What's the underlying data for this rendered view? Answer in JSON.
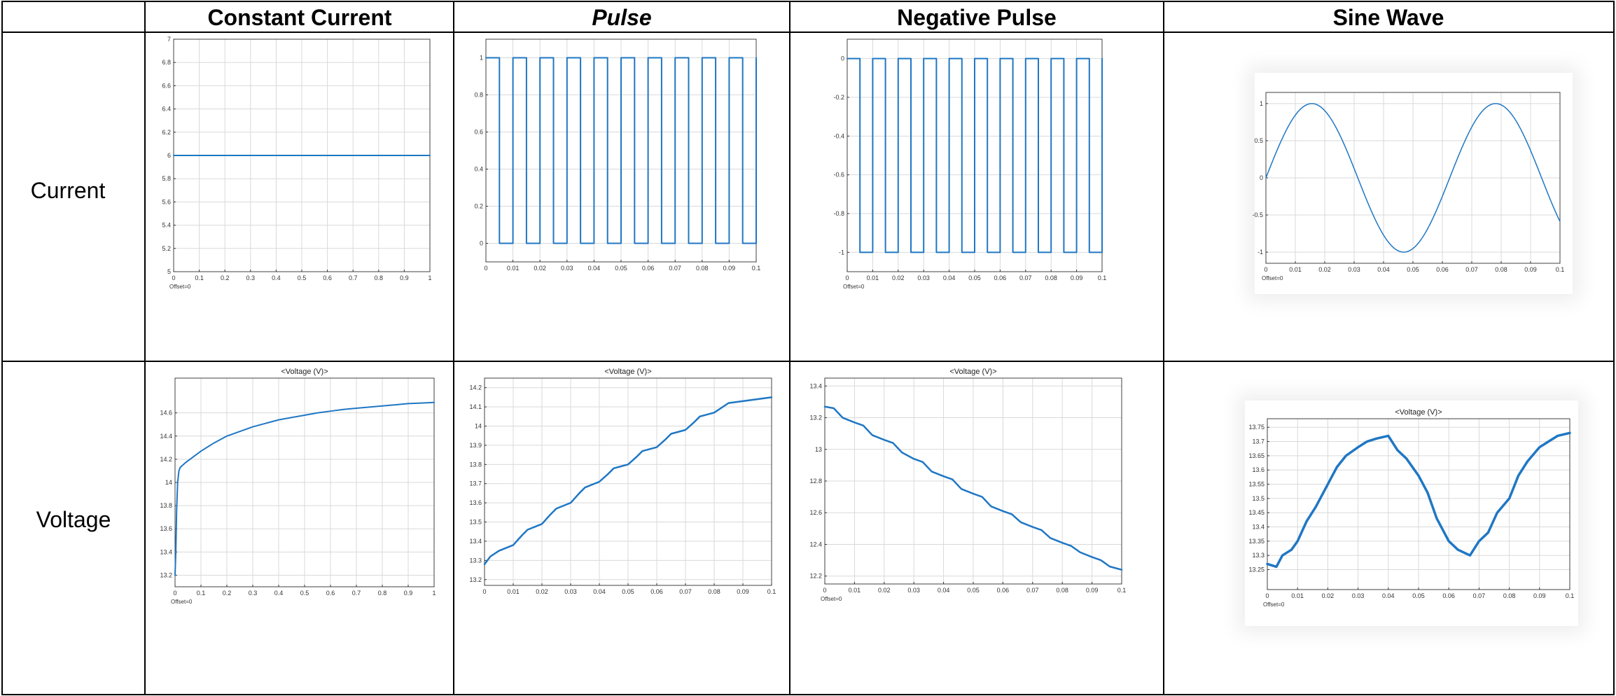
{
  "table": {
    "header": [
      "",
      "Constant Current",
      "Pulse",
      "Negative Pulse",
      "Sine Wave"
    ],
    "rows": [
      "Current",
      "Voltage"
    ]
  },
  "colors": {
    "trace": "#1f77c4",
    "grid": "#d9d9d9",
    "border": "#000000",
    "axis": "#404040"
  },
  "chart_data": [
    {
      "id": "cc-current",
      "type": "line",
      "title": "",
      "xlim": [
        0,
        1
      ],
      "ylim": [
        5,
        7
      ],
      "xticks": [
        "0",
        "0.1",
        "0.2",
        "0.3",
        "0.4",
        "0.5",
        "0.6",
        "0.7",
        "0.8",
        "0.9",
        "1"
      ],
      "yticks": [
        "5",
        "5.2",
        "5.4",
        "5.6",
        "5.8",
        "6",
        "6.2",
        "6.4",
        "6.6",
        "6.8",
        "7"
      ],
      "offset_label": "Offset=0",
      "waveform": "constant",
      "series": [
        {
          "x": [
            0,
            1
          ],
          "y": [
            6,
            6
          ]
        }
      ]
    },
    {
      "id": "pulse-current",
      "type": "line",
      "title": "",
      "xlim": [
        0,
        0.1
      ],
      "ylim": [
        -0.1,
        1.1
      ],
      "xticks": [
        "0",
        "0.01",
        "0.02",
        "0.03",
        "0.04",
        "0.05",
        "0.06",
        "0.07",
        "0.08",
        "0.09",
        "0.1"
      ],
      "yticks": [
        "0",
        "0.2",
        "0.4",
        "0.6",
        "0.8",
        "1"
      ],
      "ytick_values": [
        0,
        0.2,
        0.4,
        0.6,
        0.8,
        1
      ],
      "offset_label": "",
      "waveform": "square",
      "square": {
        "period": 0.01,
        "duty": 0.5,
        "high": 1,
        "low": 0,
        "phase": 0
      }
    },
    {
      "id": "negpulse-current",
      "type": "line",
      "title": "",
      "xlim": [
        0,
        0.1
      ],
      "ylim": [
        -1.1,
        0.1
      ],
      "xticks": [
        "0",
        "0.01",
        "0.02",
        "0.03",
        "0.04",
        "0.05",
        "0.06",
        "0.07",
        "0.08",
        "0.09",
        "0.1"
      ],
      "yticks": [
        "-1",
        "-0.8",
        "-0.6",
        "-0.4",
        "-0.2",
        "0"
      ],
      "ytick_values": [
        -1,
        -0.8,
        -0.6,
        -0.4,
        -0.2,
        0
      ],
      "offset_label": "Offset=0",
      "waveform": "square",
      "square": {
        "period": 0.01,
        "duty": 0.5,
        "high": 0,
        "low": -1,
        "phase": 0
      }
    },
    {
      "id": "sine-current",
      "type": "line",
      "title": "",
      "xlim": [
        0,
        0.1
      ],
      "ylim": [
        -1.15,
        1.15
      ],
      "xticks": [
        "0",
        "0.01",
        "0.02",
        "0.03",
        "0.04",
        "0.05",
        "0.06",
        "0.07",
        "0.08",
        "0.09",
        "0.1"
      ],
      "yticks": [
        "-1",
        "-0.5",
        "0",
        "0.5",
        "1"
      ],
      "ytick_values": [
        -1,
        -0.5,
        0,
        0.5,
        1
      ],
      "offset_label": "Offset=0",
      "waveform": "sine",
      "sine": {
        "freq": 16,
        "amp": 1
      }
    },
    {
      "id": "cc-voltage",
      "type": "line",
      "title": "<Voltage (V)>",
      "xlim": [
        0,
        1
      ],
      "ylim": [
        13.1,
        14.9
      ],
      "xticks": [
        "0",
        "0.1",
        "0.2",
        "0.3",
        "0.4",
        "0.5",
        "0.6",
        "0.7",
        "0.8",
        "0.9",
        "1"
      ],
      "yticks": [
        "13.2",
        "13.4",
        "13.6",
        "13.8",
        "14",
        "14.2",
        "14.4",
        "14.6"
      ],
      "ytick_values": [
        13.2,
        13.4,
        13.6,
        13.8,
        14,
        14.2,
        14.4,
        14.6
      ],
      "offset_label": "Offset=0",
      "series": [
        {
          "x": [
            0,
            0.003,
            0.006,
            0.01,
            0.015,
            0.02,
            0.04,
            0.07,
            0.1,
            0.15,
            0.2,
            0.25,
            0.3,
            0.35,
            0.4,
            0.45,
            0.5,
            0.55,
            0.6,
            0.65,
            0.7,
            0.75,
            0.8,
            0.85,
            0.9,
            0.95,
            1.0
          ],
          "y": [
            13.2,
            13.4,
            13.75,
            14.0,
            14.1,
            14.13,
            14.17,
            14.22,
            14.27,
            14.34,
            14.4,
            14.44,
            14.48,
            14.51,
            14.54,
            14.56,
            14.58,
            14.6,
            14.615,
            14.63,
            14.64,
            14.65,
            14.66,
            14.67,
            14.68,
            14.685,
            14.69
          ]
        }
      ]
    },
    {
      "id": "pulse-voltage",
      "type": "line",
      "title": "<Voltage (V)>",
      "xlim": [
        0,
        0.1
      ],
      "ylim": [
        13.17,
        14.25
      ],
      "xticks": [
        "0",
        "0.01",
        "0.02",
        "0.03",
        "0.04",
        "0.05",
        "0.06",
        "0.07",
        "0.08",
        "0.09",
        "0.1"
      ],
      "yticks": [
        "13.2",
        "13.3",
        "13.4",
        "13.5",
        "13.6",
        "13.7",
        "13.8",
        "13.9",
        "14",
        "14.1",
        "14.2"
      ],
      "ytick_values": [
        13.2,
        13.3,
        13.4,
        13.5,
        13.6,
        13.7,
        13.8,
        13.9,
        14,
        14.1,
        14.2
      ],
      "offset_label": "",
      "series": [
        {
          "x": [
            0,
            0.002,
            0.005,
            0.01,
            0.013,
            0.015,
            0.02,
            0.023,
            0.025,
            0.03,
            0.033,
            0.035,
            0.04,
            0.043,
            0.045,
            0.05,
            0.053,
            0.055,
            0.06,
            0.063,
            0.065,
            0.07,
            0.073,
            0.075,
            0.08,
            0.083,
            0.085,
            0.09,
            0.095,
            0.1
          ],
          "y": [
            13.28,
            13.32,
            13.35,
            13.38,
            13.43,
            13.46,
            13.49,
            13.54,
            13.57,
            13.6,
            13.65,
            13.68,
            13.71,
            13.75,
            13.78,
            13.8,
            13.84,
            13.87,
            13.89,
            13.93,
            13.96,
            13.98,
            14.02,
            14.05,
            14.07,
            14.1,
            14.12,
            14.13,
            14.14,
            14.15
          ]
        }
      ]
    },
    {
      "id": "negpulse-voltage",
      "type": "line",
      "title": "<Voltage (V)>",
      "xlim": [
        0,
        0.1
      ],
      "ylim": [
        12.15,
        13.45
      ],
      "xticks": [
        "0",
        "0.01",
        "0.02",
        "0.03",
        "0.04",
        "0.05",
        "0.06",
        "0.07",
        "0.08",
        "0.09",
        "0.1"
      ],
      "yticks": [
        "12.2",
        "12.4",
        "12.6",
        "12.8",
        "13",
        "13.2",
        "13.4"
      ],
      "ytick_values": [
        12.2,
        12.4,
        12.6,
        12.8,
        13,
        13.2,
        13.4
      ],
      "offset_label": "Offset=0",
      "series": [
        {
          "x": [
            0,
            0.003,
            0.006,
            0.01,
            0.013,
            0.016,
            0.02,
            0.023,
            0.026,
            0.03,
            0.033,
            0.036,
            0.04,
            0.043,
            0.046,
            0.05,
            0.053,
            0.056,
            0.06,
            0.063,
            0.066,
            0.07,
            0.073,
            0.076,
            0.08,
            0.083,
            0.086,
            0.09,
            0.093,
            0.096,
            0.1
          ],
          "y": [
            13.27,
            13.26,
            13.2,
            13.17,
            13.15,
            13.09,
            13.06,
            13.04,
            12.98,
            12.94,
            12.92,
            12.86,
            12.83,
            12.81,
            12.75,
            12.72,
            12.7,
            12.64,
            12.61,
            12.59,
            12.54,
            12.51,
            12.49,
            12.44,
            12.41,
            12.39,
            12.35,
            12.32,
            12.3,
            12.26,
            12.24
          ]
        }
      ]
    },
    {
      "id": "sine-voltage",
      "type": "line",
      "title": "<Voltage (V)>",
      "xlim": [
        0,
        0.1
      ],
      "ylim": [
        13.18,
        13.78
      ],
      "xticks": [
        "0",
        "0.01",
        "0.02",
        "0.03",
        "0.04",
        "0.05",
        "0.06",
        "0.07",
        "0.08",
        "0.09",
        "0.1"
      ],
      "yticks": [
        "13.25",
        "13.3",
        "13.35",
        "13.4",
        "13.45",
        "13.5",
        "13.55",
        "13.6",
        "13.65",
        "13.7",
        "13.75"
      ],
      "ytick_values": [
        13.25,
        13.3,
        13.35,
        13.4,
        13.45,
        13.5,
        13.55,
        13.6,
        13.65,
        13.7,
        13.75
      ],
      "offset_label": "Offset=0",
      "series": [
        {
          "x": [
            0,
            0.003,
            0.005,
            0.008,
            0.01,
            0.013,
            0.016,
            0.02,
            0.023,
            0.026,
            0.03,
            0.033,
            0.036,
            0.04,
            0.043,
            0.046,
            0.05,
            0.053,
            0.056,
            0.06,
            0.063,
            0.067,
            0.07,
            0.073,
            0.076,
            0.08,
            0.083,
            0.086,
            0.09,
            0.093,
            0.096,
            0.1
          ],
          "y": [
            13.27,
            13.26,
            13.3,
            13.32,
            13.35,
            13.42,
            13.47,
            13.55,
            13.61,
            13.65,
            13.68,
            13.7,
            13.71,
            13.72,
            13.67,
            13.64,
            13.58,
            13.52,
            13.43,
            13.35,
            13.32,
            13.3,
            13.35,
            13.38,
            13.45,
            13.5,
            13.58,
            13.63,
            13.68,
            13.7,
            13.72,
            13.73
          ]
        }
      ]
    }
  ]
}
